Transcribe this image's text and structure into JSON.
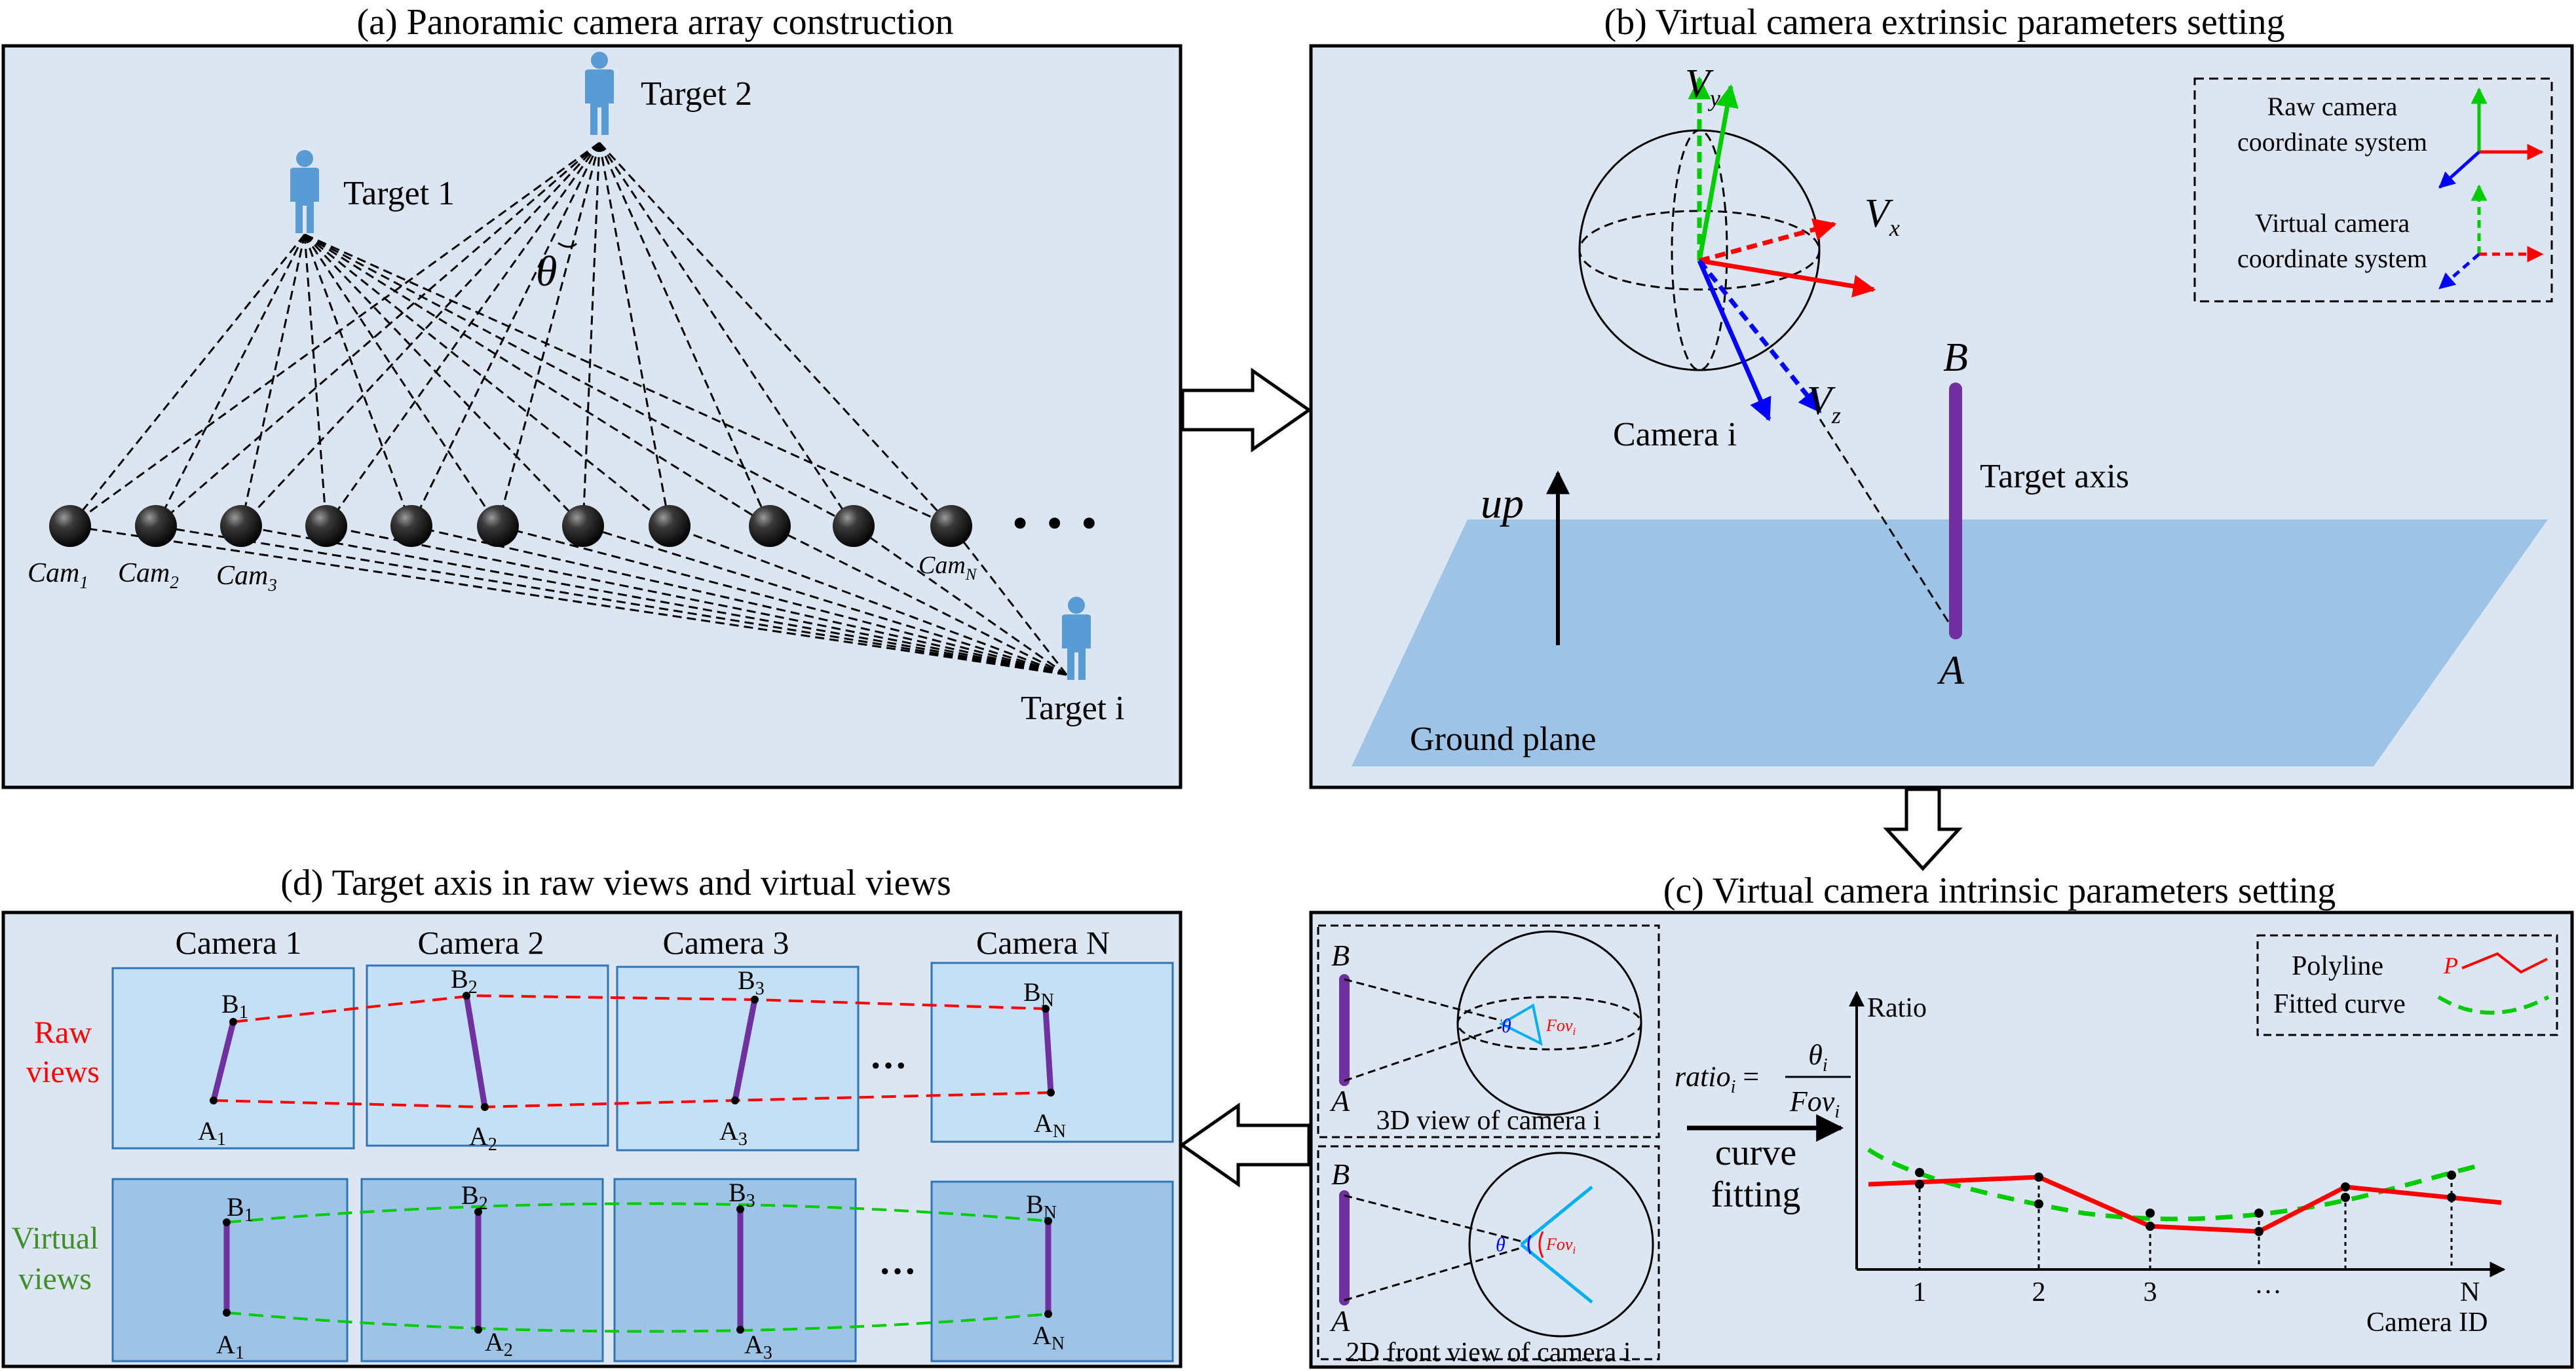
{
  "panel_a": {
    "title": "(a) Panoramic camera array construction",
    "targets": [
      "Target 1",
      "Target 2",
      "Target i"
    ],
    "theta": "θ",
    "camera_labels": [
      {
        "base": "Cam",
        "sub": "1"
      },
      {
        "base": "Cam",
        "sub": "2"
      },
      {
        "base": "Cam",
        "sub": "3"
      },
      {
        "base": "Cam",
        "sub": "N"
      }
    ],
    "ellipsis": "• • •"
  },
  "panel_b": {
    "title": "(b) Virtual camera extrinsic parameters setting",
    "axes": {
      "vy": "V",
      "vy_sub": "y",
      "vx": "V",
      "vx_sub": "x",
      "vz": "V",
      "vz_sub": "z"
    },
    "camera_label": "Camera i",
    "up": "up",
    "point_b": "B",
    "point_a": "A",
    "target_axis": "Target axis",
    "ground_plane": "Ground plane",
    "legend": {
      "raw_line1": "Raw camera",
      "raw_line2": "coordinate system",
      "virtual_line1": "Virtual camera",
      "virtual_line2": "coordinate system"
    }
  },
  "panel_c": {
    "title": "(c) Virtual camera intrinsic parameters setting",
    "view3d": "3D view of camera i",
    "view2d": "2D front view of camera i",
    "point_b": "B",
    "point_a": "A",
    "fov": "Fov",
    "fov_sub": "i",
    "theta": "θ",
    "ratio_formula": {
      "lhs": "ratio",
      "lhs_sub": "i",
      "num": "θ",
      "num_sub": "i",
      "den": "Fov",
      "den_sub": "i"
    },
    "curve_fitting_line1": "curve",
    "curve_fitting_line2": "fitting",
    "y_axis": "Ratio",
    "x_axis": "Camera ID",
    "x_ticks": [
      "1",
      "2",
      "3",
      "···",
      "N"
    ],
    "legend": {
      "polyline": "Polyline",
      "polyline_mark": "P",
      "fitted": "Fitted curve"
    }
  },
  "panel_d": {
    "title": "(d) Target axis in raw views and virtual views",
    "columns": [
      "Camera 1",
      "Camera 2",
      "Camera 3",
      "Camera N"
    ],
    "raw_label_1": "Raw",
    "raw_label_2": "views",
    "virtual_label_1": "Virtual",
    "virtual_label_2": "views",
    "ellipsis": "···",
    "point_labels": [
      {
        "b": "B",
        "a": "A",
        "sub": "1"
      },
      {
        "b": "B",
        "a": "A",
        "sub": "2"
      },
      {
        "b": "B",
        "a": "A",
        "sub": "3"
      },
      {
        "b": "B",
        "a": "A",
        "sub": "N"
      }
    ]
  },
  "colors": {
    "panel_bg": "#dce6f2",
    "ground": "#9dc3e6",
    "raw_view": "#c5e0f4",
    "virtual_view": "#9dc3e6",
    "target_axis": "#7030a0",
    "person": "#5b9bd5",
    "red": "#ff0000",
    "green": "#00cc00",
    "blue": "#0000ff"
  }
}
